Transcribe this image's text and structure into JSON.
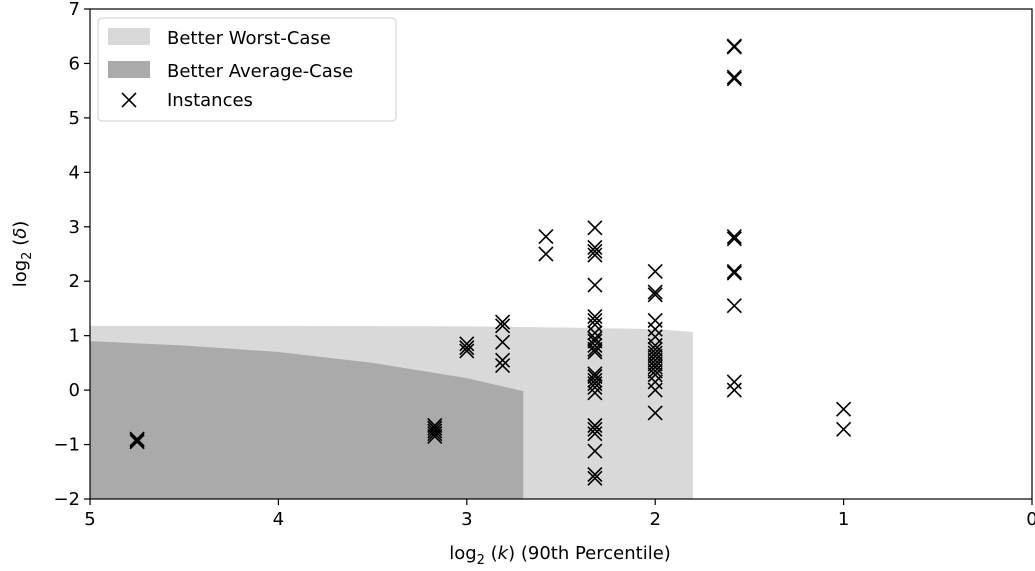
{
  "chart_data": {
    "type": "scatter",
    "title": "",
    "xlabel_parts": {
      "pre": "log",
      "sub": "2",
      "mid": " (",
      "var": "k",
      "post": ") (90th Percentile)"
    },
    "ylabel_parts": {
      "pre": "log",
      "sub": "2",
      "mid": " (",
      "var": "δ",
      "post": ")"
    },
    "x_axis_inverted": true,
    "xlim": [
      5,
      0
    ],
    "ylim": [
      -2,
      7
    ],
    "xticks": [
      5,
      4,
      3,
      2,
      1,
      0
    ],
    "yticks": [
      -2,
      -1,
      0,
      1,
      2,
      3,
      4,
      5,
      6,
      7
    ],
    "xtick_labels": [
      "5",
      "4",
      "3",
      "2",
      "1",
      "0"
    ],
    "ytick_labels": [
      "−2",
      "−1",
      "0",
      "1",
      "2",
      "3",
      "4",
      "5",
      "6",
      "7"
    ],
    "grid": false,
    "legend_position": "top-left",
    "legend": [
      {
        "label": "Better Worst-Case",
        "kind": "patch",
        "color": "#d9d9d9"
      },
      {
        "label": "Better Average-Case",
        "kind": "patch",
        "color": "#aaaaaa"
      },
      {
        "label": "Instances",
        "kind": "marker",
        "marker": "x",
        "color": "#000000"
      }
    ],
    "regions": [
      {
        "name": "Better Worst-Case",
        "color": "#d9d9d9",
        "upper_boundary": [
          [
            5.0,
            1.18
          ],
          [
            4.0,
            1.18
          ],
          [
            3.0,
            1.17
          ],
          [
            2.5,
            1.15
          ],
          [
            2.0,
            1.12
          ],
          [
            1.8,
            1.07
          ]
        ],
        "x_right": 1.8,
        "y_bottom": -2
      },
      {
        "name": "Better Average-Case",
        "color": "#aaaaaa",
        "upper_boundary": [
          [
            5.0,
            0.9
          ],
          [
            4.5,
            0.82
          ],
          [
            4.0,
            0.7
          ],
          [
            3.5,
            0.5
          ],
          [
            3.0,
            0.22
          ],
          [
            2.7,
            -0.02
          ]
        ],
        "x_right": 2.7,
        "y_bottom": -2
      }
    ],
    "series": [
      {
        "name": "Instances",
        "marker": "x",
        "color": "#000000",
        "points": [
          [
            4.75,
            -0.9
          ],
          [
            4.75,
            -0.95
          ],
          [
            4.75,
            -0.92
          ],
          [
            3.17,
            -0.65
          ],
          [
            3.17,
            -0.7
          ],
          [
            3.17,
            -0.75
          ],
          [
            3.17,
            -0.8
          ],
          [
            3.17,
            -0.85
          ],
          [
            3.0,
            0.72
          ],
          [
            3.0,
            0.78
          ],
          [
            3.0,
            0.85
          ],
          [
            2.81,
            0.45
          ],
          [
            2.81,
            0.55
          ],
          [
            2.81,
            0.88
          ],
          [
            2.81,
            1.18
          ],
          [
            2.81,
            1.25
          ],
          [
            2.58,
            2.5
          ],
          [
            2.58,
            2.82
          ],
          [
            2.32,
            2.98
          ],
          [
            2.32,
            2.62
          ],
          [
            2.32,
            2.55
          ],
          [
            2.32,
            2.48
          ],
          [
            2.32,
            1.93
          ],
          [
            2.32,
            1.35
          ],
          [
            2.32,
            1.28
          ],
          [
            2.32,
            1.2
          ],
          [
            2.32,
            1.05
          ],
          [
            2.32,
            0.95
          ],
          [
            2.32,
            0.9
          ],
          [
            2.32,
            0.82
          ],
          [
            2.32,
            0.75
          ],
          [
            2.32,
            0.7
          ],
          [
            2.32,
            0.3
          ],
          [
            2.32,
            0.25
          ],
          [
            2.32,
            0.18
          ],
          [
            2.32,
            0.12
          ],
          [
            2.32,
            0.05
          ],
          [
            2.32,
            -0.05
          ],
          [
            2.32,
            -0.65
          ],
          [
            2.32,
            -0.72
          ],
          [
            2.32,
            -0.8
          ],
          [
            2.32,
            -1.12
          ],
          [
            2.32,
            -1.55
          ],
          [
            2.32,
            -1.62
          ],
          [
            2.0,
            2.18
          ],
          [
            2.0,
            1.8
          ],
          [
            2.0,
            1.75
          ],
          [
            2.0,
            1.28
          ],
          [
            2.0,
            1.12
          ],
          [
            2.0,
            0.98
          ],
          [
            2.0,
            0.82
          ],
          [
            2.0,
            0.75
          ],
          [
            2.0,
            0.68
          ],
          [
            2.0,
            0.62
          ],
          [
            2.0,
            0.55
          ],
          [
            2.0,
            0.48
          ],
          [
            2.0,
            0.42
          ],
          [
            2.0,
            0.35
          ],
          [
            2.0,
            0.28
          ],
          [
            2.0,
            0.15
          ],
          [
            2.0,
            0.0
          ],
          [
            2.0,
            -0.42
          ],
          [
            1.58,
            6.3
          ],
          [
            1.58,
            6.32
          ],
          [
            1.58,
            5.72
          ],
          [
            1.58,
            5.75
          ],
          [
            1.58,
            2.78
          ],
          [
            1.58,
            2.82
          ],
          [
            1.58,
            2.18
          ],
          [
            1.58,
            2.15
          ],
          [
            1.58,
            1.55
          ],
          [
            1.58,
            0.15
          ],
          [
            1.58,
            0.0
          ],
          [
            1.0,
            -0.35
          ],
          [
            1.0,
            -0.72
          ]
        ]
      }
    ]
  }
}
